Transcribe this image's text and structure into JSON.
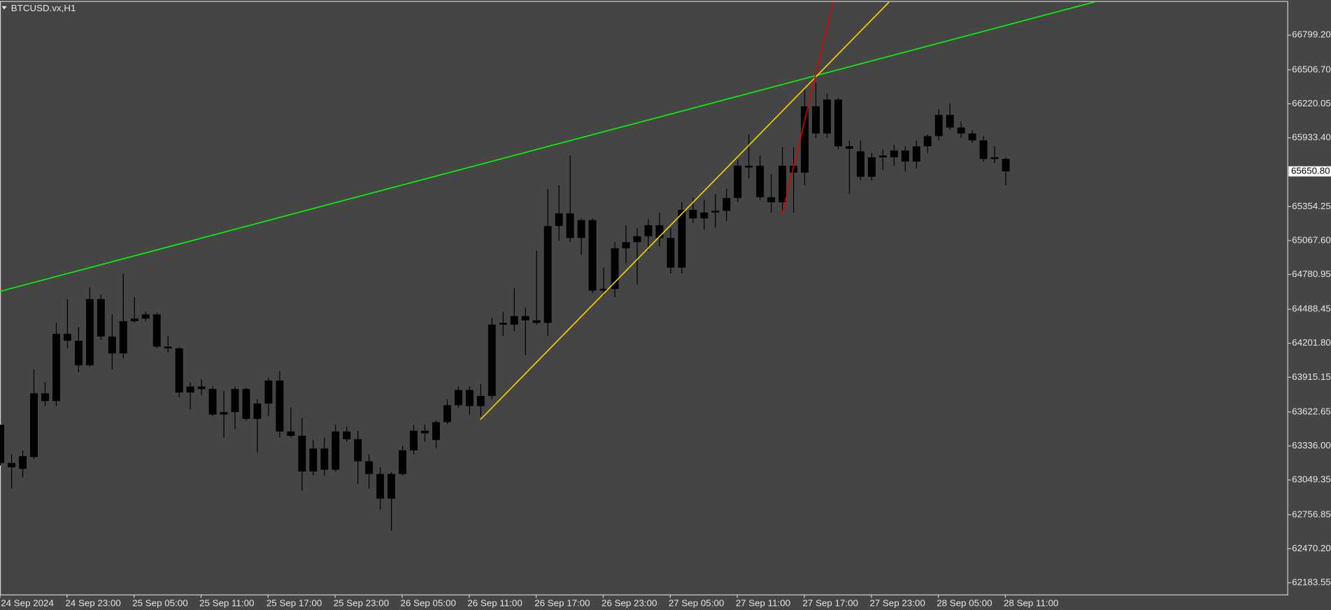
{
  "chart_data": {
    "type": "candlestick",
    "title": "BTCUSD.vx,H1",
    "color": "#000000",
    "categories": [
      "24 Sep 2024",
      null,
      null,
      null,
      null,
      null,
      "24 Sep 23:00",
      null,
      null,
      null,
      null,
      null,
      "25 Sep 05:00",
      null,
      null,
      null,
      null,
      null,
      "25 Sep 11:00",
      null,
      null,
      null,
      null,
      null,
      "25 Sep 17:00",
      null,
      null,
      null,
      null,
      null,
      "25 Sep 23:00",
      null,
      null,
      null,
      null,
      null,
      "26 Sep 05:00",
      null,
      null,
      null,
      null,
      null,
      "26 Sep 11:00",
      null,
      null,
      null,
      null,
      null,
      "26 Sep 17:00",
      null,
      null,
      null,
      null,
      null,
      "26 Sep 23:00",
      null,
      null,
      null,
      null,
      null,
      "27 Sep 05:00",
      null,
      null,
      null,
      null,
      null,
      "27 Sep 11:00",
      null,
      null,
      null,
      null,
      null,
      "27 Sep 17:00",
      null,
      null,
      null,
      null,
      null,
      "27 Sep 23:00",
      null,
      null,
      null,
      null,
      null,
      "28 Sep 05:00",
      null,
      null,
      null,
      null,
      null,
      "28 Sep 11:00"
    ],
    "open": [
      63515,
      63193,
      63143,
      63243,
      63780,
      63715,
      64281,
      64223,
      64016,
      64574,
      64259,
      64116,
      64388,
      64410,
      64445,
      64173,
      64159,
      63787,
      63837,
      63816,
      63601,
      63622,
      63816,
      63565,
      63694,
      63887,
      63458,
      63422,
      63121,
      63315,
      63136,
      63458,
      63393,
      63207,
      63100,
      62892,
      63100,
      63300,
      63443,
      63386,
      63537,
      63680,
      63808,
      63672,
      63758,
      64359,
      64359,
      64431,
      64395,
      64374,
      65190,
      65297,
      65089,
      65240,
      64646,
      64660,
      65003,
      65054,
      65104,
      65197,
      65089,
      64839,
      65326,
      65254,
      65304,
      65318,
      65426,
      65698,
      65698,
      65433,
      65390,
      65640,
      65640,
      66199,
      65970,
      66256,
      65862,
      65819,
      65605,
      65769,
      65769,
      65826,
      65733,
      65862,
      65948,
      66127,
      66020,
      65970,
      65912,
      65755,
      65755
    ],
    "high": [
      63515,
      63265,
      63300,
      63980,
      63873,
      64374,
      64574,
      64338,
      64674,
      64610,
      64445,
      64789,
      64588,
      64467,
      64460,
      64266,
      64173,
      63873,
      63894,
      63837,
      63801,
      63837,
      63830,
      63730,
      63909,
      63966,
      63658,
      63572,
      63386,
      63408,
      63515,
      63501,
      63465,
      63265,
      63157,
      63114,
      63336,
      63515,
      63515,
      63551,
      63730,
      63837,
      63837,
      63858,
      64417,
      64467,
      64667,
      64503,
      64982,
      65504,
      65533,
      65784,
      65254,
      65254,
      64839,
      65054,
      65197,
      65175,
      65247,
      65304,
      65175,
      65390,
      65433,
      65411,
      65461,
      65504,
      65748,
      65962,
      65784,
      65626,
      65855,
      65855,
      66342,
      66399,
      66306,
      66270,
      65912,
      65912,
      65805,
      65834,
      65877,
      65862,
      65912,
      65962,
      66177,
      66220,
      66070,
      65998,
      65948,
      65862,
      65769
    ],
    "low": [
      63172,
      62978,
      63071,
      63229,
      63672,
      63672,
      64159,
      63959,
      64002,
      64231,
      63980,
      64073,
      64374,
      64388,
      64159,
      64123,
      63744,
      63644,
      63766,
      63587,
      63408,
      63479,
      63551,
      63279,
      63587,
      63408,
      63408,
      62957,
      63086,
      63086,
      63121,
      63372,
      63014,
      62978,
      62799,
      62621,
      63086,
      63265,
      63372,
      63315,
      63522,
      63658,
      63601,
      63587,
      63730,
      64266,
      64302,
      64102,
      64359,
      64266,
      65068,
      65054,
      64946,
      64624,
      64603,
      64588,
      64875,
      64696,
      64982,
      65018,
      64789,
      64789,
      65218,
      65161,
      65175,
      65232,
      65390,
      65590,
      65411,
      65304,
      65290,
      65304,
      65533,
      65934,
      65934,
      65841,
      65461,
      65576,
      65576,
      65662,
      65698,
      65648,
      65676,
      65805,
      65912,
      65998,
      65934,
      65891,
      65733,
      65719,
      65533
    ],
    "close": [
      63193,
      63157,
      63250,
      63780,
      63715,
      64281,
      64223,
      64016,
      64574,
      64259,
      64116,
      64388,
      64410,
      64445,
      64173,
      64159,
      63787,
      63837,
      63816,
      63601,
      63622,
      63816,
      63565,
      63694,
      63887,
      63458,
      63422,
      63121,
      63315,
      63136,
      63458,
      63393,
      63207,
      63100,
      62892,
      63100,
      63300,
      63465,
      63465,
      63537,
      63680,
      63808,
      63672,
      63758,
      64359,
      64374,
      64431,
      64395,
      64374,
      65190,
      65297,
      65089,
      65240,
      64646,
      64660,
      65003,
      65054,
      65104,
      65197,
      65089,
      64839,
      65326,
      65254,
      65304,
      65318,
      65426,
      65698,
      65683,
      65433,
      65390,
      65698,
      65698,
      66199,
      65970,
      66256,
      65862,
      65841,
      65605,
      65769,
      65784,
      65826,
      65733,
      65862,
      65948,
      66127,
      66020,
      65970,
      65912,
      65755,
      65769,
      65650.8
    ],
    "current_price": {
      "value": 65650.8,
      "label": "65650.80"
    },
    "trendlines": [
      {
        "color": "#00ff00",
        "x": [
          0,
          98
        ],
        "y": [
          64639,
          67079
        ]
      },
      {
        "color": "#ffd700",
        "x": [
          43,
          79.6
        ],
        "y": [
          63558,
          67079
        ]
      },
      {
        "color": "#e00000",
        "x": [
          70,
          74.6
        ],
        "y": [
          65283,
          67079
        ]
      }
    ],
    "ylim": [
      62084,
      67079
    ],
    "yticks": [
      {
        "value": 62183.55,
        "label": "62183.55"
      },
      {
        "value": 62470.2,
        "label": "62470.20"
      },
      {
        "value": 62756.85,
        "label": "62756.85"
      },
      {
        "value": 63049.35,
        "label": "63049.35"
      },
      {
        "value": 63336,
        "label": "63336.00"
      },
      {
        "value": 63622.65,
        "label": "63622.65"
      },
      {
        "value": 63915.15,
        "label": "63915.15"
      },
      {
        "value": 64201.8,
        "label": "64201.80"
      },
      {
        "value": 64488.45,
        "label": "64488.45"
      },
      {
        "value": 64780.95,
        "label": "64780.95"
      },
      {
        "value": 65067.6,
        "label": "65067.60"
      },
      {
        "value": 65354.25,
        "label": "65354.25"
      },
      {
        "value": 65933.4,
        "label": "65933.40"
      },
      {
        "value": 66220.05,
        "label": "66220.05"
      },
      {
        "value": 66506.7,
        "label": "66506.70"
      },
      {
        "value": 66799.2,
        "label": "66799.20"
      }
    ]
  }
}
